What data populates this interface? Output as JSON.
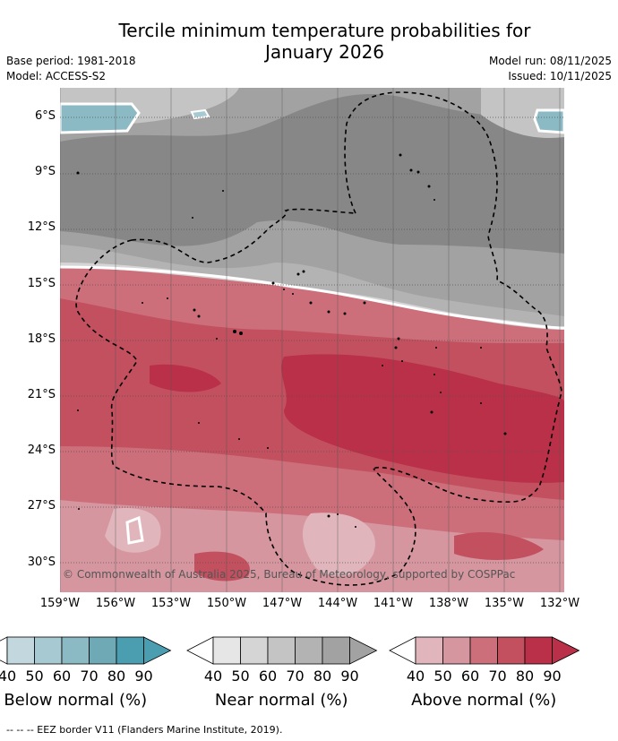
{
  "title_line1": "Tercile minimum temperature probabilities for",
  "title_line2": "January 2026",
  "base_period": "Base period: 1981-2018",
  "model": "Model: ACCESS-S2",
  "model_run": "Model run: 08/11/2025",
  "issued": "Issued: 10/11/2025",
  "copyright": "© Commonwealth of Australia 2025, Bureau of Meteorology, supported by COSPPac",
  "lat_ticks": [
    "6°S",
    "9°S",
    "12°S",
    "15°S",
    "18°S",
    "21°S",
    "24°S",
    "27°S",
    "30°S"
  ],
  "lon_ticks": [
    "159°W",
    "156°W",
    "153°W",
    "150°W",
    "147°W",
    "144°W",
    "141°W",
    "138°W",
    "135°W",
    "132°W"
  ],
  "colorbars": [
    {
      "name": "below",
      "title": "Below normal (%)",
      "colors": [
        "#c3d8de",
        "#a7c9d1",
        "#8bb9c4",
        "#6fa9b6",
        "#4a9eb0"
      ],
      "labels": [
        "40",
        "50",
        "60",
        "70",
        "80",
        "90"
      ]
    },
    {
      "name": "near",
      "title": "Near normal (%)",
      "colors": [
        "#e6e6e6",
        "#d5d5d5",
        "#c4c4c4",
        "#b3b3b3",
        "#a2a2a2"
      ],
      "labels": [
        "40",
        "50",
        "60",
        "70",
        "80",
        "90"
      ]
    },
    {
      "name": "above",
      "title": "Above normal (%)",
      "colors": [
        "#e0b6bc",
        "#d5969f",
        "#cc6f7a",
        "#c2505f",
        "#b93048"
      ],
      "labels": [
        "40",
        "50",
        "60",
        "70",
        "80",
        "90"
      ]
    }
  ],
  "footer": "--  --  -- EEZ border V11 (Flanders Marine Institute, 2019)."
}
